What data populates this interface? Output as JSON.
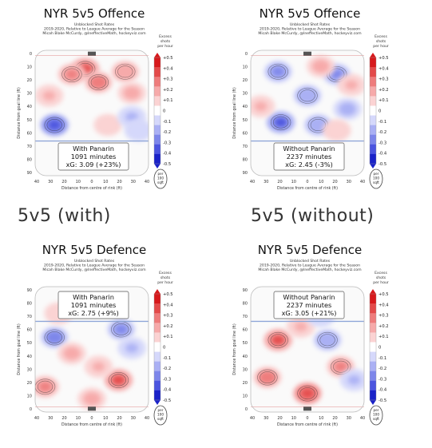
{
  "captions": [
    "5v5 (with)",
    "5v5 (without)"
  ],
  "colorbar": {
    "header": [
      "Excess",
      "shots",
      "per hour"
    ],
    "ticks": [
      "+0.5",
      "+0.4",
      "+0.3",
      "+0.2",
      "+0.1",
      "0",
      "-0.1",
      "-0.2",
      "-0.3",
      "-0.4",
      "-0.5"
    ],
    "footer": [
      "per",
      "100",
      "sqft"
    ],
    "colors": [
      "#d7191c",
      "#e34a4a",
      "#ee7c7c",
      "#f6aaaa",
      "#fbd3d3",
      "#ffffff",
      "#d5d8fb",
      "#aab0f4",
      "#7d86ea",
      "#4b54df",
      "#1a22c8"
    ]
  },
  "chart_data": [
    {
      "type": "heatmap",
      "title": "NYR 5v5 Offence",
      "subtitle_lines": [
        "Unblocked Shot Rates",
        "2019-2020, Relative to League Average for the Season",
        "Micah Blake McCurdy, @IneffectiveMath, hockeyviz.com"
      ],
      "xlabel": "Distance from centre of rink (ft)",
      "ylabel": "Distance from goal line (ft)",
      "x_ticks": [
        40,
        30,
        20,
        10,
        0,
        10,
        20,
        30,
        40
      ],
      "y_ticks": [
        0,
        10,
        20,
        30,
        40,
        50,
        60,
        70,
        80,
        90
      ],
      "goal": "top",
      "box": [
        "With Panarin",
        "1091 minutes",
        "xG: 3.09 (+23%)"
      ],
      "blobs": [
        {
          "x": -5,
          "y": 10,
          "v": 0.45
        },
        {
          "x": -15,
          "y": 14,
          "v": 0.35
        },
        {
          "x": 5,
          "y": 20,
          "v": 0.4
        },
        {
          "x": 25,
          "y": 12,
          "v": 0.3
        },
        {
          "x": 30,
          "y": 28,
          "v": 0.25
        },
        {
          "x": -32,
          "y": 30,
          "v": 0.2
        },
        {
          "x": 12,
          "y": 52,
          "v": 0.15
        },
        {
          "x": -28,
          "y": 52,
          "v": -0.5
        },
        {
          "x": 30,
          "y": 46,
          "v": -0.2
        },
        {
          "x": 35,
          "y": 56,
          "v": -0.15
        }
      ]
    },
    {
      "type": "heatmap",
      "title": "NYR 5v5 Offence",
      "subtitle_lines": [
        "Unblocked Shot Rates",
        "2019-2020, Relative to League Average for the Season",
        "Micah Blake McCurdy, @IneffectiveMath, hockeyviz.com"
      ],
      "xlabel": "Distance from centre of rink (ft)",
      "ylabel": "Distance from goal line (ft)",
      "x_ticks": [
        40,
        30,
        20,
        10,
        0,
        10,
        20,
        30,
        40
      ],
      "y_ticks": [
        0,
        10,
        20,
        30,
        40,
        50,
        60,
        70,
        80,
        90
      ],
      "goal": "top",
      "box": [
        "Without Panarin",
        "2237 minutes",
        "xG: 2.45 (-3%)"
      ],
      "blobs": [
        {
          "x": -22,
          "y": 12,
          "v": -0.35
        },
        {
          "x": 22,
          "y": 14,
          "v": -0.35
        },
        {
          "x": 0,
          "y": 30,
          "v": -0.3
        },
        {
          "x": -20,
          "y": 50,
          "v": -0.45
        },
        {
          "x": 8,
          "y": 52,
          "v": -0.3
        },
        {
          "x": 30,
          "y": 40,
          "v": -0.25
        },
        {
          "x": -35,
          "y": 38,
          "v": 0.2
        },
        {
          "x": 10,
          "y": 8,
          "v": 0.25
        },
        {
          "x": 33,
          "y": 22,
          "v": 0.2
        },
        {
          "x": 22,
          "y": 56,
          "v": 0.15
        }
      ]
    },
    {
      "type": "heatmap",
      "title": "NYR 5v5 Defence",
      "subtitle_lines": [
        "Unblocked Shot Rates",
        "2019-2020, Relative to League Average for the Season",
        "Micah Blake McCurdy, @IneffectiveMath, hockeyviz.com"
      ],
      "xlabel": "Distance from centre of rink (ft)",
      "ylabel": "Distance from goal line (ft)",
      "x_ticks": [
        40,
        30,
        20,
        10,
        0,
        10,
        20,
        30,
        40
      ],
      "y_ticks": [
        90,
        80,
        70,
        60,
        50,
        40,
        30,
        20,
        10,
        0
      ],
      "goal": "bottom",
      "box": [
        "With Panarin",
        "1091 minutes",
        "xG: 2.75 (+9%)"
      ],
      "blobs": [
        {
          "x": -28,
          "y": 52,
          "v": -0.4
        },
        {
          "x": 22,
          "y": 58,
          "v": -0.35
        },
        {
          "x": 30,
          "y": 44,
          "v": -0.2
        },
        {
          "x": -35,
          "y": 15,
          "v": 0.35
        },
        {
          "x": -15,
          "y": 40,
          "v": 0.25
        },
        {
          "x": 20,
          "y": 20,
          "v": 0.45
        },
        {
          "x": 5,
          "y": 30,
          "v": 0.2
        },
        {
          "x": 0,
          "y": 6,
          "v": 0.25
        },
        {
          "x": -25,
          "y": 70,
          "v": 0.15
        }
      ]
    },
    {
      "type": "heatmap",
      "title": "NYR 5v5 Defence",
      "subtitle_lines": [
        "Unblocked Shot Rates",
        "2019-2020, Relative to League Average for the Season",
        "Micah Blake McCurdy, @IneffectiveMath, hockeyviz.com"
      ],
      "xlabel": "Distance from centre of rink (ft)",
      "ylabel": "Distance from goal line (ft)",
      "x_ticks": [
        40,
        30,
        20,
        10,
        0,
        10,
        20,
        30,
        40
      ],
      "y_ticks": [
        90,
        80,
        70,
        60,
        50,
        40,
        30,
        20,
        10,
        0
      ],
      "goal": "bottom",
      "box": [
        "Without Panarin",
        "2237 minutes",
        "xG: 3.05 (+21%)"
      ],
      "blobs": [
        {
          "x": -22,
          "y": 50,
          "v": 0.45
        },
        {
          "x": -30,
          "y": 22,
          "v": 0.4
        },
        {
          "x": 0,
          "y": 10,
          "v": 0.5
        },
        {
          "x": 25,
          "y": 30,
          "v": 0.35
        },
        {
          "x": 15,
          "y": 50,
          "v": -0.3
        },
        {
          "x": 35,
          "y": 20,
          "v": -0.2
        },
        {
          "x": -5,
          "y": 60,
          "v": 0.2
        },
        {
          "x": 10,
          "y": 68,
          "v": -0.15
        }
      ]
    }
  ]
}
